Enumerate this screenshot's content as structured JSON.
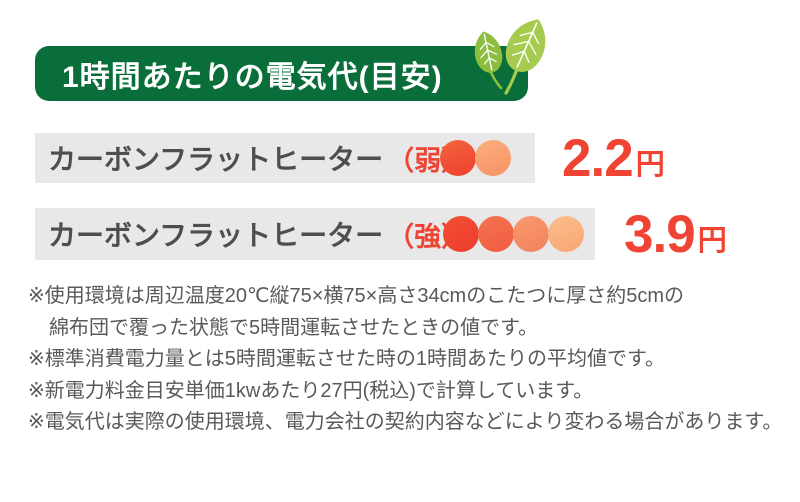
{
  "header": {
    "title": "1時間あたりの電気代(目安)",
    "bg_color": "#0a6e3a"
  },
  "decoration": {
    "small_leaf_color": "#8cbd3f",
    "large_leaf_color": "#a5cb4f"
  },
  "colors": {
    "accent_red": "#ef4433",
    "row_bg": "#e8e8e8",
    "label_gray": "#4e4e4e",
    "note_gray": "#595959"
  },
  "rows": [
    {
      "label": "カーボンフラットヒーター",
      "level": "（弱）",
      "price_value": "2.2",
      "price_unit": "円",
      "dot_colors": [
        [
          "#f4643f",
          "#ee3f2d"
        ],
        [
          "#fbae7c",
          "#f69266"
        ]
      ]
    },
    {
      "label": "カーボンフラットヒーター",
      "level": "（強）",
      "price_value": "3.9",
      "price_unit": "円",
      "dot_colors": [
        [
          "#f15034",
          "#ee3c2b"
        ],
        [
          "#f4734f",
          "#f15c41"
        ],
        [
          "#f79a6d",
          "#f4825c"
        ],
        [
          "#fbbd8c",
          "#f9a673"
        ]
      ]
    }
  ],
  "notes": {
    "lines": [
      {
        "text": "※使用環境は周辺温度20℃縦75×横75×高さ34cmのこたつに厚さ約5cmの",
        "indent": false
      },
      {
        "text": "綿布団で覆った状態で5時間運転させたときの値です。",
        "indent": true
      },
      {
        "text": "※標準消費電力量とは5時間運転させた時の1時間あたりの平均値です。",
        "indent": false
      },
      {
        "text": "※新電力料金目安単価1kwあたり27円(税込)で計算しています。",
        "indent": false
      },
      {
        "text": "※電気代は実際の使用環境、電力会社の契約内容などにより変わる場合があります。",
        "indent": false
      }
    ]
  }
}
